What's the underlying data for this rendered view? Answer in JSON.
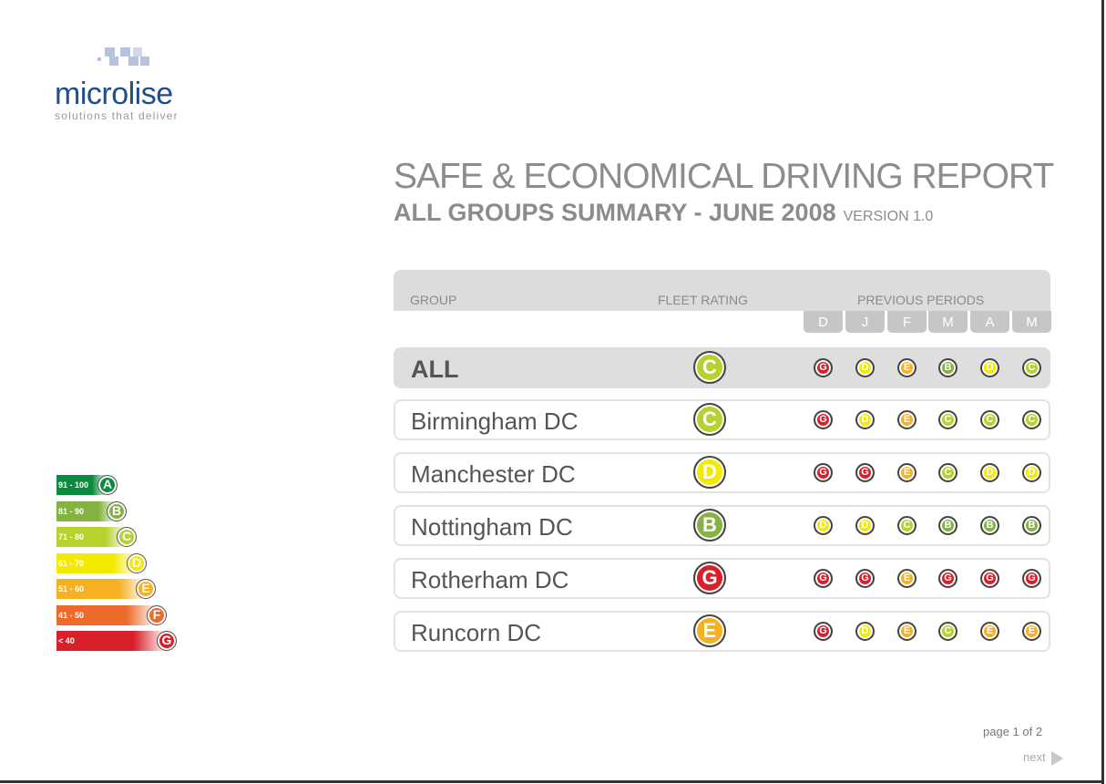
{
  "logo": {
    "name": "microlise",
    "tagline": "solutions that deliver"
  },
  "title": "SAFE & ECONOMICAL DRIVING REPORT",
  "subtitle": "ALL GROUPS SUMMARY - JUNE 2008",
  "version": "VERSION 1.0",
  "header": {
    "group": "GROUP",
    "fleet_rating": "FLEET RATING",
    "previous_periods": "PREVIOUS PERIODS",
    "months": [
      "D",
      "J",
      "F",
      "M",
      "A",
      "M"
    ]
  },
  "rows": [
    {
      "group": "ALL",
      "rating": "C",
      "previous": [
        "G",
        "D",
        "E",
        "B",
        "D",
        "C"
      ]
    },
    {
      "group": "Birmingham DC",
      "rating": "C",
      "previous": [
        "G",
        "D",
        "E",
        "C",
        "C",
        "C"
      ]
    },
    {
      "group": "Manchester DC",
      "rating": "D",
      "previous": [
        "G",
        "G",
        "E",
        "C",
        "D",
        "D"
      ]
    },
    {
      "group": "Nottingham DC",
      "rating": "B",
      "previous": [
        "D",
        "D",
        "C",
        "B",
        "B",
        "B"
      ]
    },
    {
      "group": "Rotherham DC",
      "rating": "G",
      "previous": [
        "G",
        "G",
        "E",
        "G",
        "G",
        "G"
      ]
    },
    {
      "group": "Runcorn DC",
      "rating": "E",
      "previous": [
        "G",
        "D",
        "E",
        "C",
        "E",
        "E"
      ]
    }
  ],
  "legend": [
    {
      "range": "91 - 100",
      "grade": "A"
    },
    {
      "range": "81 - 90",
      "grade": "B"
    },
    {
      "range": "71 - 80",
      "grade": "C"
    },
    {
      "range": "61 - 70",
      "grade": "D"
    },
    {
      "range": "51 - 60",
      "grade": "E"
    },
    {
      "range": "41 - 50",
      "grade": "F"
    },
    {
      "range": "< 40",
      "grade": "G"
    }
  ],
  "colors": {
    "A": "#0b8b40",
    "B": "#84b341",
    "C": "#b7d12e",
    "D": "#f2ea00",
    "E": "#f5b122",
    "F": "#ec6b2b",
    "G": "#d8202b"
  },
  "pager": {
    "page": "page 1 of 2",
    "next": "next"
  }
}
